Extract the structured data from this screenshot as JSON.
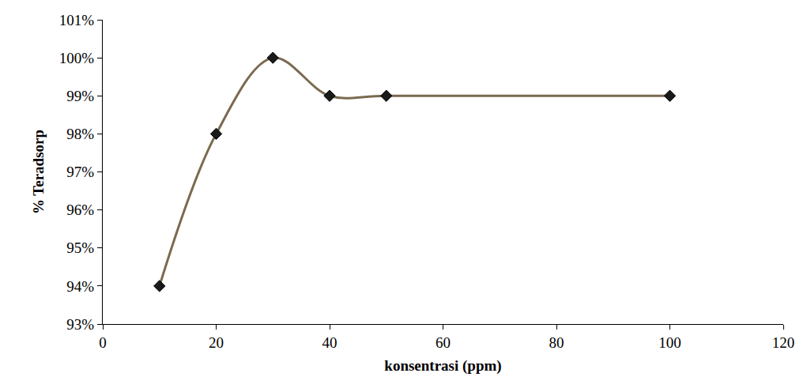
{
  "chart_data": {
    "type": "line",
    "x_label": "konsentrasi (ppm)",
    "y_label": "% Teradsorp",
    "x": [
      10,
      20,
      30,
      40,
      50,
      100
    ],
    "values": [
      94,
      98,
      100,
      99,
      99,
      99
    ],
    "color": "#7a6a4f",
    "marker": "diamond",
    "line_style": "smooth",
    "xlim": [
      0,
      120
    ],
    "xticks": [
      0,
      20,
      40,
      60,
      80,
      100,
      120
    ],
    "ylim": [
      93,
      101
    ],
    "yticks": [
      {
        "value": 93,
        "label": "93%"
      },
      {
        "value": 94,
        "label": "94%"
      },
      {
        "value": 95,
        "label": "95%"
      },
      {
        "value": 96,
        "label": "96%"
      },
      {
        "value": 97,
        "label": "97%"
      },
      {
        "value": 98,
        "label": "98%"
      },
      {
        "value": 99,
        "label": "99%"
      },
      {
        "value": 100,
        "label": "100%"
      },
      {
        "value": 101,
        "label": "101%"
      }
    ],
    "grid": false
  }
}
